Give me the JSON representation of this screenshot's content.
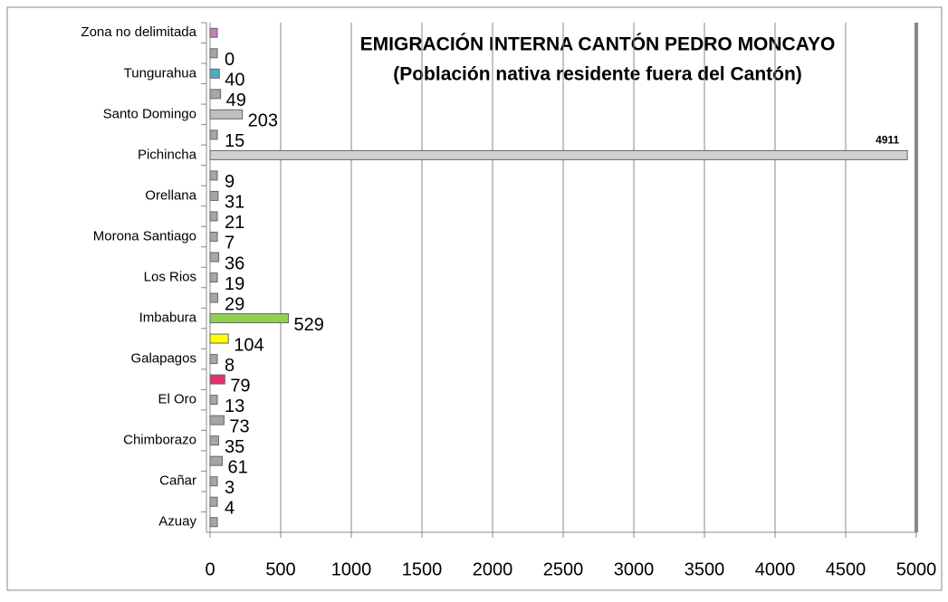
{
  "chart_data": {
    "type": "bar",
    "orientation": "horizontal",
    "title": [
      "EMIGRACIÓN INTERNA CANTÓN PEDRO MONCAYO",
      "(Población nativa residente fuera del Cantón)"
    ],
    "categories": [
      "Azuay",
      null,
      "Cañar",
      null,
      "Chimborazo",
      null,
      "El Oro",
      null,
      "Galapagos",
      null,
      "Imbabura",
      null,
      "Los Rios",
      null,
      "Morona Santiago",
      null,
      "Orellana",
      null,
      "Pichincha",
      null,
      "Santo Domingo",
      null,
      "Tungurahua",
      null,
      "Zona no delimitada"
    ],
    "values": [
      20,
      4,
      3,
      61,
      35,
      73,
      13,
      79,
      8,
      104,
      529,
      29,
      19,
      36,
      7,
      21,
      31,
      9,
      4911,
      15,
      203,
      49,
      40,
      0,
      2
    ],
    "value_labels": [
      null,
      "4",
      "3",
      "61",
      "35",
      "73",
      "13",
      "79",
      "8",
      "104",
      "529",
      "29",
      "19",
      "36",
      "7",
      "21",
      "31",
      "9",
      "4911",
      "15",
      "203",
      "49",
      "40",
      "0",
      null
    ],
    "colors": [
      "#a6a6a6",
      "#a6a6a6",
      "#a6a6a6",
      "#a6a6a6",
      "#a6a6a6",
      "#a6a6a6",
      "#a6a6a6",
      "#e0306e",
      "#a6a6a6",
      "#ffff00",
      "#92d050",
      "#a6a6a6",
      "#a6a6a6",
      "#a6a6a6",
      "#a6a6a6",
      "#a6a6a6",
      "#a6a6a6",
      "#a6a6a6",
      "#d0d0d0",
      "#a6a6a6",
      "#bfbfbf",
      "#a6a6a6",
      "#4bacc6",
      "#a6a6a6",
      "#c080c0"
    ],
    "xlim": [
      0,
      5000
    ],
    "xticks": [
      0,
      500,
      1000,
      1500,
      2000,
      2500,
      3000,
      3500,
      4000,
      4500,
      5000
    ],
    "grid": true
  }
}
